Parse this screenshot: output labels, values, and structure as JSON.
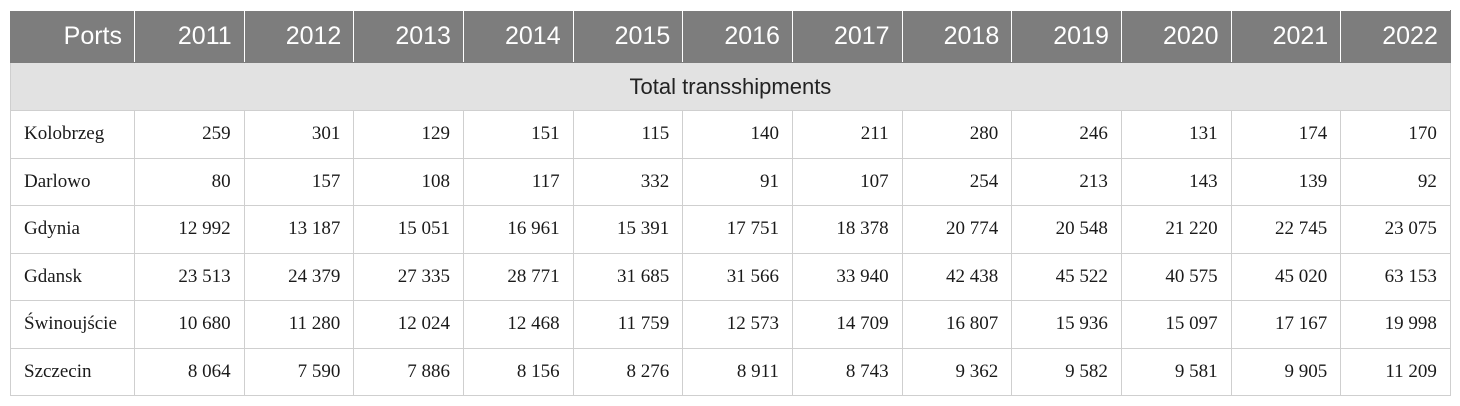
{
  "table": {
    "header": [
      "Ports",
      "2011",
      "2012",
      "2013",
      "2014",
      "2015",
      "2016",
      "2017",
      "2018",
      "2019",
      "2020",
      "2021",
      "2022"
    ],
    "section_title": "Total transshipments",
    "rows": [
      {
        "port": "Kolobrzeg",
        "values": [
          "259",
          "301",
          "129",
          "151",
          "115",
          "140",
          "211",
          "280",
          "246",
          "131",
          "174",
          "170"
        ]
      },
      {
        "port": "Darlowo",
        "values": [
          "80",
          "157",
          "108",
          "117",
          "332",
          "91",
          "107",
          "254",
          "213",
          "143",
          "139",
          "92"
        ]
      },
      {
        "port": "Gdynia",
        "values": [
          "12 992",
          "13 187",
          "15 051",
          "16 961",
          "15 391",
          "17 751",
          "18 378",
          "20 774",
          "20 548",
          "21 220",
          "22 745",
          "23 075"
        ]
      },
      {
        "port": "Gdansk",
        "values": [
          "23 513",
          "24 379",
          "27 335",
          "28 771",
          "31 685",
          "31 566",
          "33 940",
          "42 438",
          "45 522",
          "40 575",
          "45 020",
          "63 153"
        ]
      },
      {
        "port": "Świnoujście",
        "values": [
          "10 680",
          "11 280",
          "12 024",
          "12 468",
          "11 759",
          "12 573",
          "14 709",
          "16 807",
          "15 936",
          "15 097",
          "17 167",
          "19 998"
        ]
      },
      {
        "port": "Szczecin",
        "values": [
          "8 064",
          "7 590",
          "7 886",
          "8 156",
          "8 276",
          "8 911",
          "8 743",
          "9 362",
          "9 582",
          "9 581",
          "9 905",
          "11 209"
        ]
      }
    ]
  }
}
